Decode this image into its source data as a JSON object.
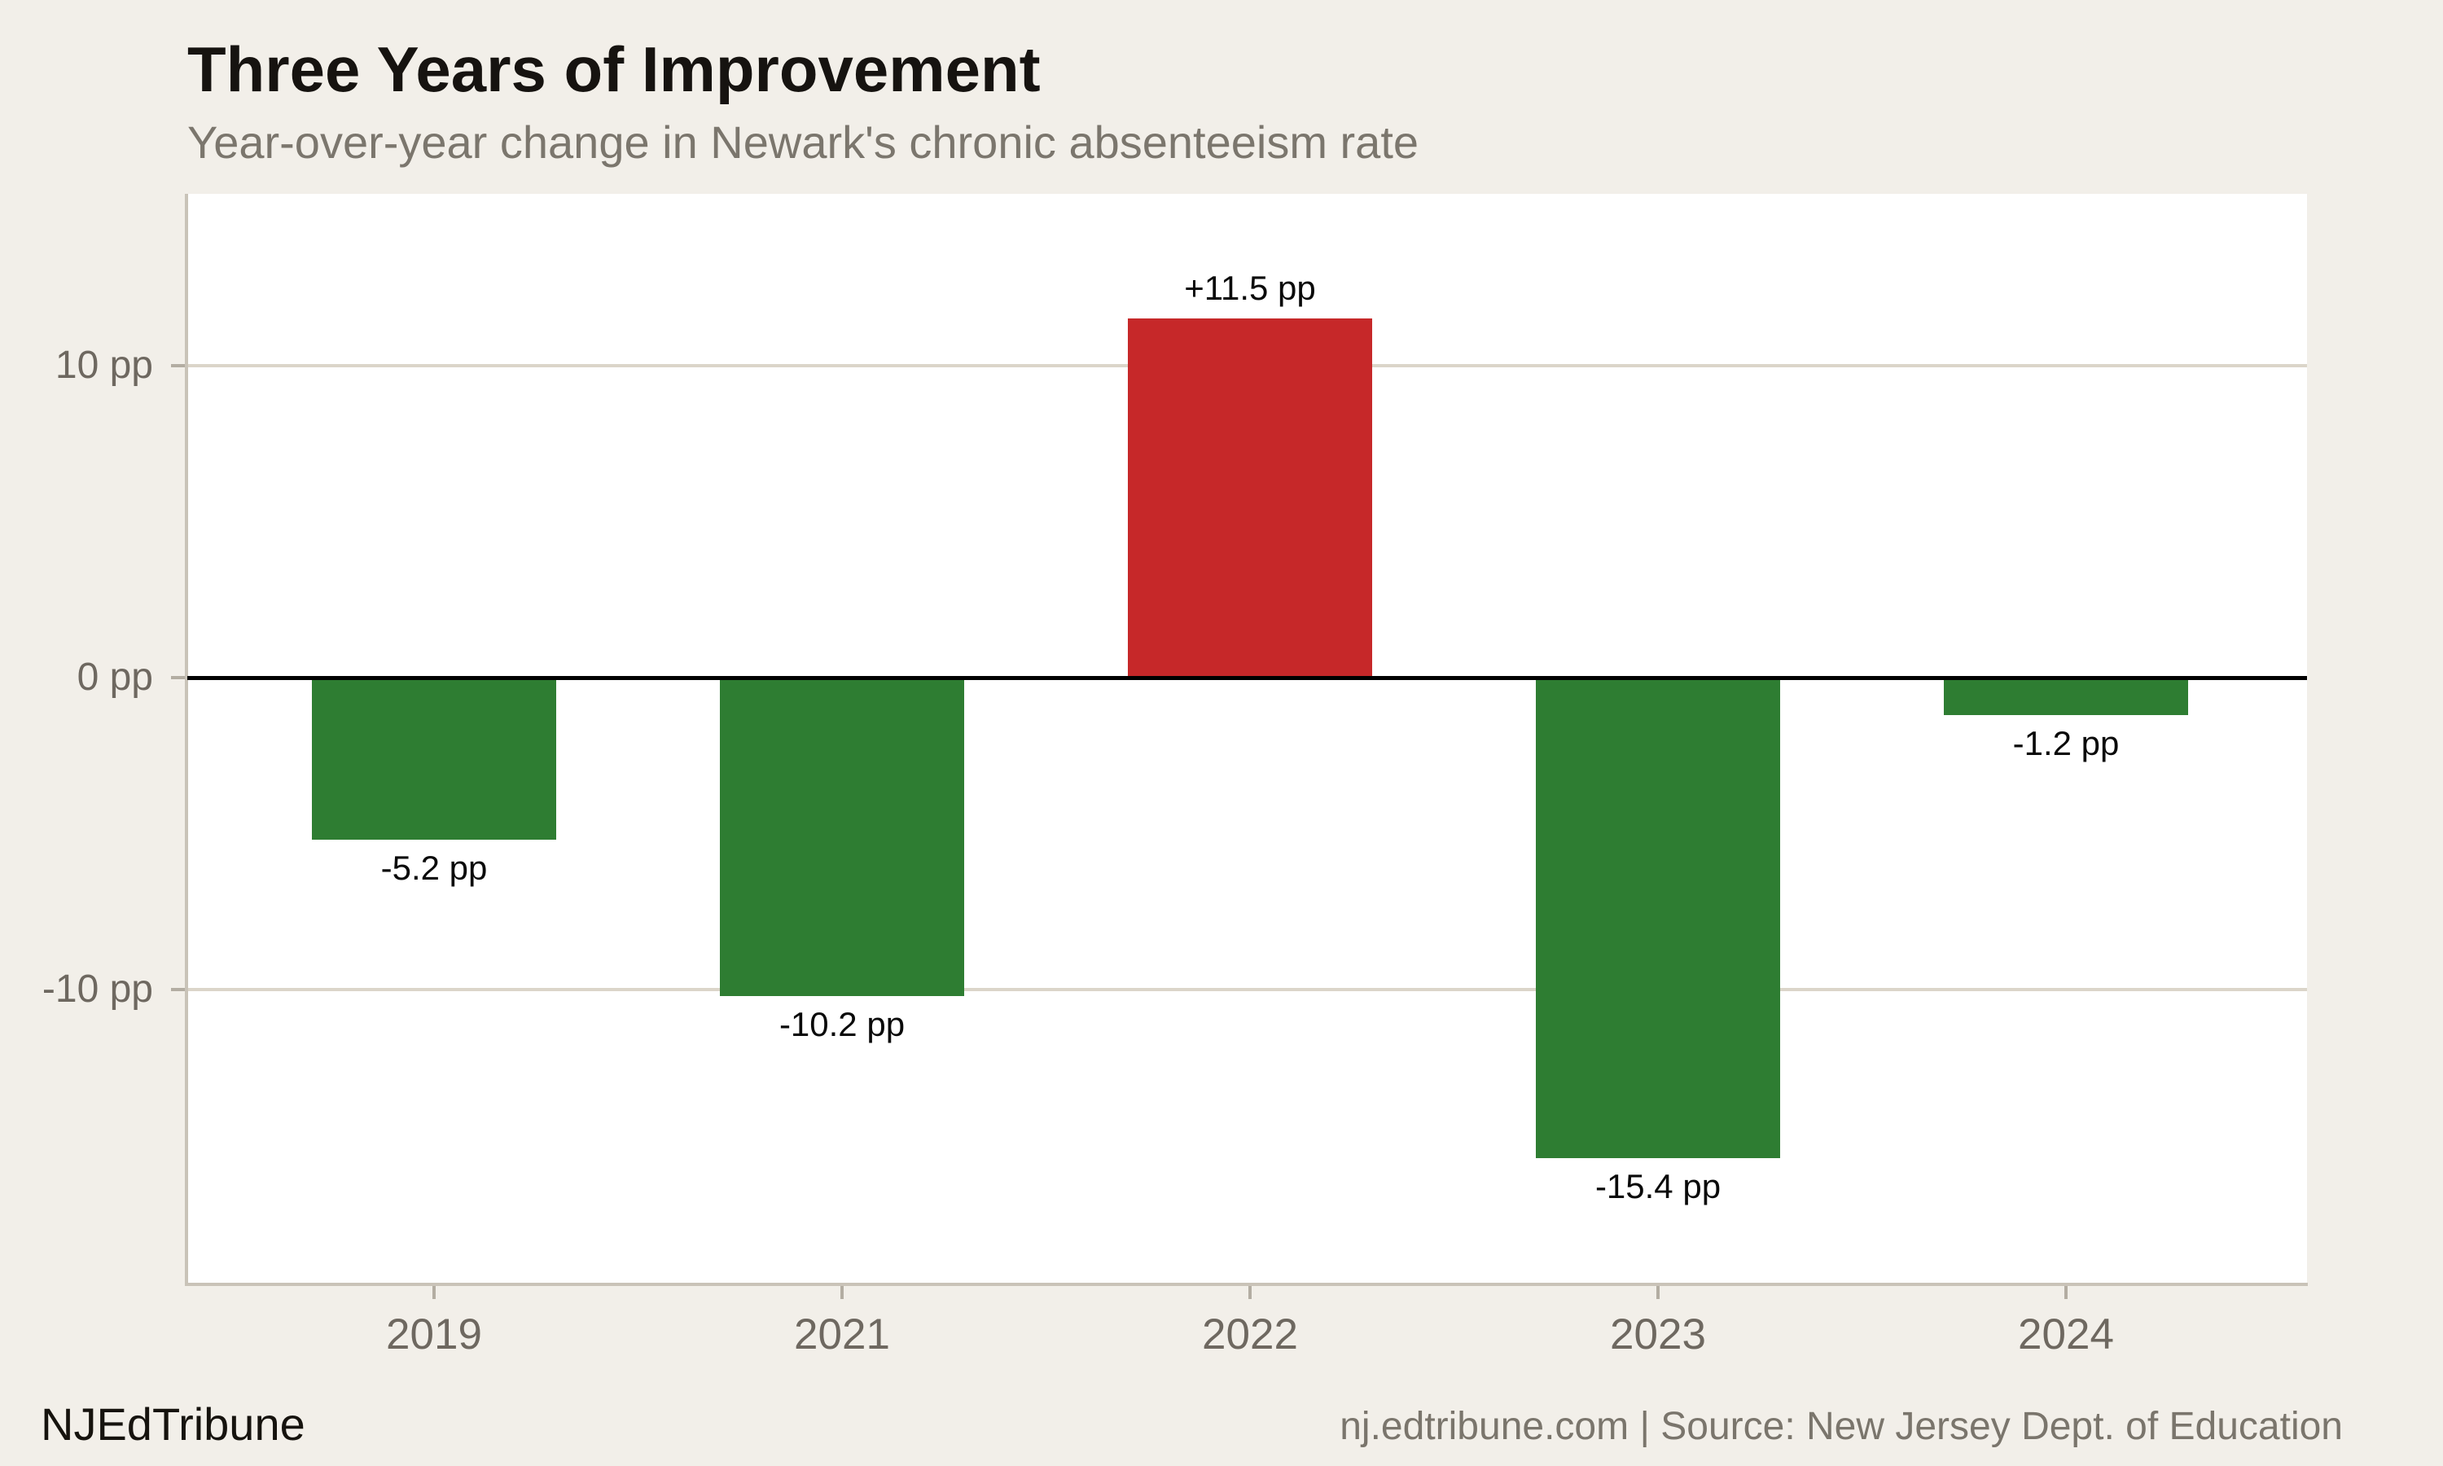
{
  "page": {
    "background": "#f2efe9"
  },
  "header": {
    "title": "Three Years of Improvement",
    "subtitle": "Year-over-year change in Newark's chronic absenteeism rate"
  },
  "chart_data": {
    "type": "bar",
    "title": "Three Years of Improvement",
    "subtitle": "Year-over-year change in Newark's chronic absenteeism rate",
    "categories": [
      "2019",
      "2021",
      "2022",
      "2023",
      "2024"
    ],
    "values": [
      -5.2,
      -10.2,
      11.5,
      -15.4,
      -1.2
    ],
    "data_labels": [
      "-5.2 pp",
      "-10.2 pp",
      "+11.5 pp",
      "-15.4 pp",
      "-1.2 pp"
    ],
    "unit": "pp",
    "xlabel": "",
    "ylabel": "",
    "yticks": [
      {
        "value": 10,
        "label": "10 pp"
      },
      {
        "value": 0,
        "label": "0 pp"
      },
      {
        "value": -10,
        "label": "-10 pp"
      }
    ],
    "ylim": [
      -19.4,
      15.5
    ],
    "grid": "horizontal-light",
    "legend": "none",
    "zero_baseline": true,
    "colors": {
      "positive": "#c62829",
      "negative": "#2e7d32",
      "zero_line": "#000000",
      "gridline": "#dbd5c9",
      "axis_line": "#c9c3b8",
      "tick": "#b3ada2",
      "axis_text": "#6e6860",
      "plot_background": "#ffffff"
    }
  },
  "footer": {
    "brand": "NJEdTribune",
    "attribution": "nj.edtribune.com | Source: New Jersey Dept. of Education"
  }
}
